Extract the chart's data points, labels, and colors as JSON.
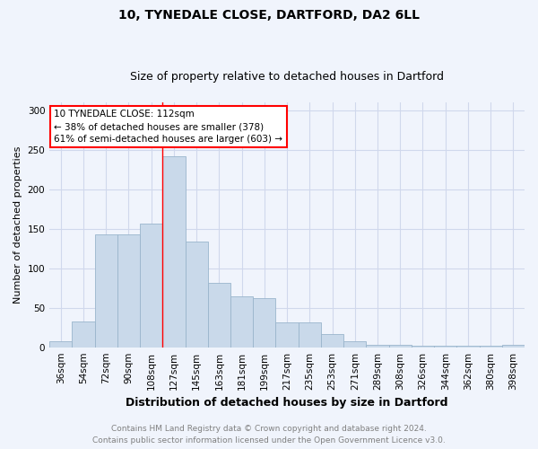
{
  "title_line1": "10, TYNEDALE CLOSE, DARTFORD, DA2 6LL",
  "title_line2": "Size of property relative to detached houses in Dartford",
  "xlabel": "Distribution of detached houses by size in Dartford",
  "ylabel": "Number of detached properties",
  "categories": [
    "36sqm",
    "54sqm",
    "72sqm",
    "90sqm",
    "108sqm",
    "127sqm",
    "145sqm",
    "163sqm",
    "181sqm",
    "199sqm",
    "217sqm",
    "235sqm",
    "253sqm",
    "271sqm",
    "289sqm",
    "308sqm",
    "326sqm",
    "344sqm",
    "362sqm",
    "380sqm",
    "398sqm"
  ],
  "values": [
    8,
    33,
    143,
    143,
    157,
    242,
    134,
    82,
    65,
    62,
    31,
    31,
    17,
    8,
    3,
    3,
    2,
    2,
    2,
    2,
    3
  ],
  "bar_color": "#c9d9ea",
  "bar_edgecolor": "#9ab5cc",
  "red_line_bin": 5,
  "annotation_line1": "10 TYNEDALE CLOSE: 112sqm",
  "annotation_line2": "← 38% of detached houses are smaller (378)",
  "annotation_line3": "61% of semi-detached houses are larger (603) →",
  "footer_line1": "Contains HM Land Registry data © Crown copyright and database right 2024.",
  "footer_line2": "Contains public sector information licensed under the Open Government Licence v3.0.",
  "ylim": [
    0,
    310
  ],
  "background_color": "#f0f4fc",
  "grid_color": "#d0d8ec",
  "title_fontsize": 10,
  "subtitle_fontsize": 9,
  "xlabel_fontsize": 9,
  "ylabel_fontsize": 8,
  "tick_fontsize": 7.5,
  "footer_fontsize": 6.5
}
